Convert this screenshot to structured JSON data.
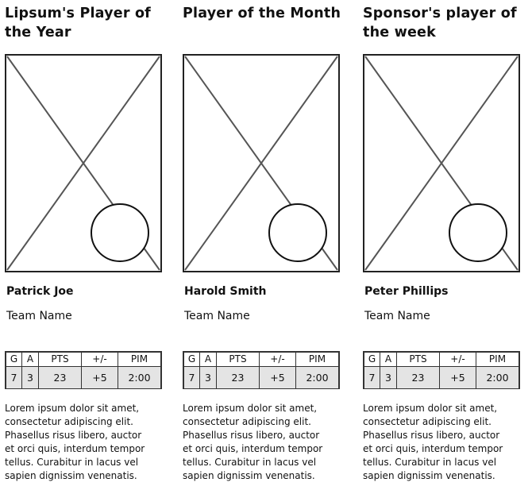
{
  "cards": [
    {
      "title": "Lipsum's Player of the Year",
      "player_name": "Patrick Joe",
      "team_name": "Team Name",
      "stats_headers": [
        "G",
        "A",
        "PTS",
        "+/-",
        "PIM"
      ],
      "stats_values": [
        "7",
        "3",
        "23",
        "+5",
        "2:00"
      ],
      "description": "Lorem ipsum dolor sit amet,\nconsectetur adipiscing elit.\nPhasellus risus libero, auctor\net orci quis, interdum tempor\ntellus. Curabitur in lacus vel\nsapien dignissim venenatis."
    },
    {
      "title": "Player of the Month",
      "player_name": "Harold Smith",
      "team_name": "Team Name",
      "stats_headers": [
        "G",
        "A",
        "PTS",
        "+/-",
        "PIM"
      ],
      "stats_values": [
        "7",
        "3",
        "23",
        "+5",
        "2:00"
      ],
      "description": "Lorem ipsum dolor sit amet,\nconsectetur adipiscing elit.\nPhasellus risus libero, auctor\net orci quis, interdum tempor\ntellus. Curabitur in lacus vel\nsapien dignissim venenatis."
    },
    {
      "title": "Sponsor's player of the week",
      "player_name": "Peter Phillips",
      "team_name": "Team Name",
      "stats_headers": [
        "G",
        "A",
        "PTS",
        "+/-",
        "PIM"
      ],
      "stats_values": [
        "7",
        "3",
        "23",
        "+5",
        "2:00"
      ],
      "description": "Lorem ipsum dolor sit amet,\nconsectetur adipiscing elit.\nPhasellus risus libero, auctor\net orci quis, interdum tempor\ntellus. Curabitur in lacus vel\nsapien dignissim venenatis."
    }
  ],
  "colors": {
    "ink": "#111111",
    "border": "#333333",
    "stat_fill": "#e4e4e4",
    "placeholder_line": "#555555"
  },
  "icons": {
    "photo_placeholder": "image-placeholder-icon",
    "badge": "circle-badge-icon"
  }
}
